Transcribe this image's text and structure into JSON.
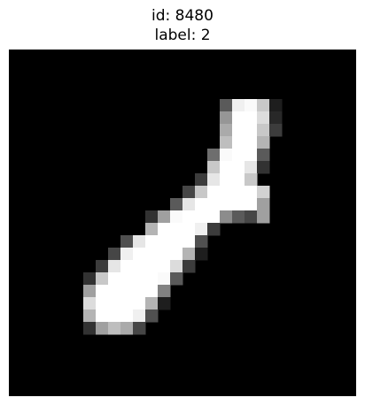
{
  "title": {
    "line1": "id: 8480",
    "line2": "label: 2"
  },
  "image": {
    "grid_size": 28,
    "background": "#000000",
    "pixels": [
      [
        4,
        17,
        90
      ],
      [
        4,
        18,
        240
      ],
      [
        4,
        19,
        250
      ],
      [
        4,
        20,
        200
      ],
      [
        4,
        21,
        30
      ],
      [
        5,
        17,
        150
      ],
      [
        5,
        18,
        255
      ],
      [
        5,
        19,
        255
      ],
      [
        5,
        20,
        220
      ],
      [
        5,
        21,
        40
      ],
      [
        6,
        17,
        170
      ],
      [
        6,
        18,
        255
      ],
      [
        6,
        19,
        255
      ],
      [
        6,
        20,
        200
      ],
      [
        6,
        21,
        60
      ],
      [
        7,
        17,
        190
      ],
      [
        7,
        18,
        255
      ],
      [
        7,
        19,
        255
      ],
      [
        7,
        20,
        180
      ],
      [
        8,
        16,
        110
      ],
      [
        8,
        17,
        250
      ],
      [
        8,
        18,
        255
      ],
      [
        8,
        19,
        255
      ],
      [
        8,
        20,
        90
      ],
      [
        9,
        16,
        200
      ],
      [
        9,
        17,
        255
      ],
      [
        9,
        18,
        255
      ],
      [
        9,
        19,
        230
      ],
      [
        9,
        20,
        50
      ],
      [
        10,
        15,
        60
      ],
      [
        10,
        16,
        230
      ],
      [
        10,
        17,
        255
      ],
      [
        10,
        18,
        255
      ],
      [
        10,
        19,
        200
      ],
      [
        11,
        14,
        70
      ],
      [
        11,
        15,
        200
      ],
      [
        11,
        16,
        255
      ],
      [
        11,
        17,
        255
      ],
      [
        11,
        18,
        255
      ],
      [
        11,
        19,
        255
      ],
      [
        11,
        20,
        210
      ],
      [
        12,
        13,
        90
      ],
      [
        12,
        14,
        230
      ],
      [
        12,
        15,
        255
      ],
      [
        12,
        16,
        255
      ],
      [
        12,
        17,
        255
      ],
      [
        12,
        18,
        255
      ],
      [
        12,
        19,
        255
      ],
      [
        12,
        20,
        160
      ],
      [
        13,
        11,
        50
      ],
      [
        13,
        12,
        160
      ],
      [
        13,
        13,
        250
      ],
      [
        13,
        14,
        255
      ],
      [
        13,
        15,
        255
      ],
      [
        13,
        16,
        255
      ],
      [
        13,
        17,
        140
      ],
      [
        13,
        18,
        90
      ],
      [
        13,
        19,
        70
      ],
      [
        13,
        20,
        160
      ],
      [
        14,
        11,
        180
      ],
      [
        14,
        12,
        255
      ],
      [
        14,
        13,
        255
      ],
      [
        14,
        14,
        255
      ],
      [
        14,
        15,
        240
      ],
      [
        14,
        16,
        60
      ],
      [
        15,
        9,
        80
      ],
      [
        15,
        10,
        230
      ],
      [
        15,
        11,
        255
      ],
      [
        15,
        12,
        255
      ],
      [
        15,
        13,
        255
      ],
      [
        15,
        14,
        255
      ],
      [
        15,
        15,
        80
      ],
      [
        16,
        8,
        70
      ],
      [
        16,
        9,
        240
      ],
      [
        16,
        10,
        255
      ],
      [
        16,
        11,
        255
      ],
      [
        16,
        12,
        255
      ],
      [
        16,
        13,
        255
      ],
      [
        16,
        14,
        180
      ],
      [
        16,
        15,
        30
      ],
      [
        17,
        7,
        60
      ],
      [
        17,
        8,
        230
      ],
      [
        17,
        9,
        255
      ],
      [
        17,
        10,
        255
      ],
      [
        17,
        11,
        255
      ],
      [
        17,
        12,
        255
      ],
      [
        17,
        13,
        220
      ],
      [
        17,
        14,
        60
      ],
      [
        18,
        6,
        50
      ],
      [
        18,
        7,
        200
      ],
      [
        18,
        8,
        255
      ],
      [
        18,
        9,
        255
      ],
      [
        18,
        10,
        255
      ],
      [
        18,
        11,
        255
      ],
      [
        18,
        12,
        250
      ],
      [
        18,
        13,
        90
      ],
      [
        19,
        6,
        160
      ],
      [
        19,
        7,
        255
      ],
      [
        19,
        8,
        255
      ],
      [
        19,
        9,
        255
      ],
      [
        19,
        10,
        255
      ],
      [
        19,
        11,
        255
      ],
      [
        19,
        12,
        130
      ],
      [
        20,
        6,
        220
      ],
      [
        20,
        7,
        255
      ],
      [
        20,
        8,
        255
      ],
      [
        20,
        9,
        255
      ],
      [
        20,
        10,
        255
      ],
      [
        20,
        11,
        180
      ],
      [
        20,
        12,
        30
      ],
      [
        21,
        6,
        180
      ],
      [
        21,
        7,
        255
      ],
      [
        21,
        8,
        255
      ],
      [
        21,
        9,
        255
      ],
      [
        21,
        10,
        240
      ],
      [
        21,
        11,
        80
      ],
      [
        22,
        6,
        50
      ],
      [
        22,
        7,
        160
      ],
      [
        22,
        8,
        190
      ],
      [
        22,
        9,
        170
      ],
      [
        22,
        10,
        70
      ]
    ]
  }
}
